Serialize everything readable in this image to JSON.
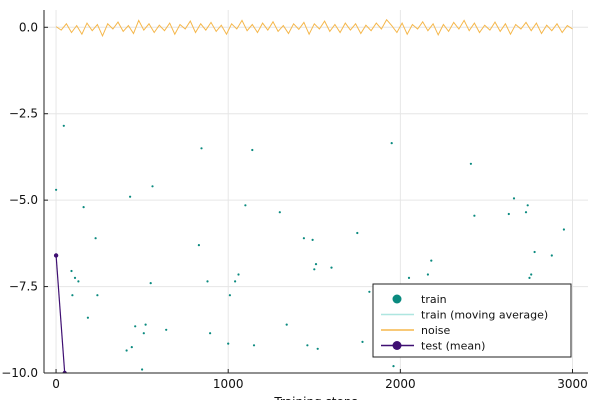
{
  "chart_data": {
    "type": "scatter",
    "xlabel": "Training steps",
    "ylabel": "",
    "title": "",
    "xlim": [
      -70,
      3090
    ],
    "ylim": [
      -10.0,
      0.5
    ],
    "x_ticks": [
      0,
      1000,
      2000,
      3000
    ],
    "x_tick_labels": [
      "0",
      "1000",
      "2000",
      "3000"
    ],
    "y_ticks": [
      0.0,
      -2.5,
      -5.0,
      -7.5,
      -10.0
    ],
    "y_tick_labels": [
      "0.0",
      "−2.5",
      "−5.0",
      "−7.5",
      "−10.0"
    ],
    "grid": true,
    "legend_position": "bottom-right",
    "series": [
      {
        "name": "train",
        "kind": "scatter",
        "color": "#0a8a7f",
        "points": [
          [
            0,
            -4.7
          ],
          [
            45,
            -2.85
          ],
          [
            90,
            -7.05
          ],
          [
            95,
            -7.75
          ],
          [
            110,
            -7.25
          ],
          [
            130,
            -7.35
          ],
          [
            160,
            -5.2
          ],
          [
            185,
            -8.4
          ],
          [
            230,
            -6.1
          ],
          [
            240,
            -7.75
          ],
          [
            410,
            -9.35
          ],
          [
            430,
            -4.9
          ],
          [
            440,
            -9.25
          ],
          [
            460,
            -8.65
          ],
          [
            500,
            -9.9
          ],
          [
            510,
            -8.85
          ],
          [
            520,
            -8.6
          ],
          [
            550,
            -7.4
          ],
          [
            560,
            -4.6
          ],
          [
            640,
            -8.75
          ],
          [
            830,
            -6.3
          ],
          [
            845,
            -3.5
          ],
          [
            880,
            -7.35
          ],
          [
            895,
            -8.85
          ],
          [
            1000,
            -9.15
          ],
          [
            1010,
            -7.75
          ],
          [
            1040,
            -7.35
          ],
          [
            1060,
            -7.15
          ],
          [
            1100,
            -5.15
          ],
          [
            1140,
            -3.55
          ],
          [
            1150,
            -9.2
          ],
          [
            1300,
            -5.35
          ],
          [
            1340,
            -8.6
          ],
          [
            1440,
            -6.1
          ],
          [
            1460,
            -9.2
          ],
          [
            1490,
            -6.15
          ],
          [
            1500,
            -7.0
          ],
          [
            1510,
            -6.85
          ],
          [
            1520,
            -9.3
          ],
          [
            1600,
            -6.95
          ],
          [
            1750,
            -5.95
          ],
          [
            1780,
            -9.1
          ],
          [
            1820,
            -7.65
          ],
          [
            1950,
            -3.35
          ],
          [
            1960,
            -9.8
          ],
          [
            2050,
            -7.25
          ],
          [
            2060,
            -8.0
          ],
          [
            2160,
            -7.15
          ],
          [
            2180,
            -6.75
          ],
          [
            2410,
            -3.95
          ],
          [
            2430,
            -5.45
          ],
          [
            2630,
            -5.4
          ],
          [
            2660,
            -4.95
          ],
          [
            2730,
            -5.35
          ],
          [
            2740,
            -5.15
          ],
          [
            2750,
            -7.25
          ],
          [
            2760,
            -7.15
          ],
          [
            2780,
            -6.5
          ],
          [
            2880,
            -6.6
          ],
          [
            2950,
            -5.85
          ]
        ]
      },
      {
        "name": "train (moving average)",
        "kind": "line",
        "color": "#aee6e0",
        "points": []
      },
      {
        "name": "noise",
        "kind": "line",
        "color": "#f5b74b",
        "points": [
          [
            0,
            0.02
          ],
          [
            30,
            -0.08
          ],
          [
            60,
            0.1
          ],
          [
            90,
            -0.15
          ],
          [
            120,
            0.05
          ],
          [
            150,
            -0.2
          ],
          [
            180,
            0.12
          ],
          [
            210,
            -0.1
          ],
          [
            240,
            0.08
          ],
          [
            270,
            -0.25
          ],
          [
            300,
            0.1
          ],
          [
            330,
            -0.05
          ],
          [
            360,
            0.15
          ],
          [
            390,
            -0.12
          ],
          [
            420,
            0.05
          ],
          [
            450,
            -0.18
          ],
          [
            480,
            0.2
          ],
          [
            510,
            -0.08
          ],
          [
            540,
            0.1
          ],
          [
            570,
            -0.15
          ],
          [
            600,
            0.06
          ],
          [
            630,
            -0.1
          ],
          [
            660,
            0.12
          ],
          [
            690,
            -0.2
          ],
          [
            720,
            0.08
          ],
          [
            750,
            -0.05
          ],
          [
            780,
            0.18
          ],
          [
            810,
            -0.15
          ],
          [
            840,
            0.1
          ],
          [
            870,
            -0.08
          ],
          [
            900,
            0.14
          ],
          [
            930,
            -0.12
          ],
          [
            960,
            0.06
          ],
          [
            990,
            -0.2
          ],
          [
            1020,
            0.1
          ],
          [
            1050,
            -0.05
          ],
          [
            1080,
            0.2
          ],
          [
            1110,
            -0.1
          ],
          [
            1140,
            0.08
          ],
          [
            1170,
            -0.15
          ],
          [
            1200,
            0.12
          ],
          [
            1230,
            -0.08
          ],
          [
            1260,
            0.16
          ],
          [
            1290,
            -0.12
          ],
          [
            1320,
            0.05
          ],
          [
            1350,
            -0.18
          ],
          [
            1380,
            0.1
          ],
          [
            1410,
            -0.06
          ],
          [
            1440,
            0.14
          ],
          [
            1470,
            -0.2
          ],
          [
            1500,
            0.1
          ],
          [
            1530,
            -0.05
          ],
          [
            1560,
            0.18
          ],
          [
            1590,
            -0.12
          ],
          [
            1620,
            0.08
          ],
          [
            1650,
            -0.15
          ],
          [
            1680,
            0.12
          ],
          [
            1710,
            -0.08
          ],
          [
            1740,
            0.1
          ],
          [
            1770,
            -0.18
          ],
          [
            1800,
            0.06
          ],
          [
            1830,
            -0.1
          ],
          [
            1860,
            0.12
          ],
          [
            1890,
            -0.05
          ],
          [
            1920,
            0.22
          ],
          [
            1950,
            0.05
          ],
          [
            1980,
            -0.15
          ],
          [
            2010,
            0.12
          ],
          [
            2040,
            -0.2
          ],
          [
            2070,
            0.08
          ],
          [
            2100,
            -0.05
          ],
          [
            2130,
            0.16
          ],
          [
            2160,
            -0.1
          ],
          [
            2190,
            0.1
          ],
          [
            2220,
            -0.22
          ],
          [
            2250,
            0.08
          ],
          [
            2280,
            -0.12
          ],
          [
            2310,
            0.14
          ],
          [
            2340,
            -0.05
          ],
          [
            2370,
            0.2
          ],
          [
            2400,
            -0.1
          ],
          [
            2430,
            0.12
          ],
          [
            2460,
            -0.15
          ],
          [
            2490,
            0.06
          ],
          [
            2520,
            -0.08
          ],
          [
            2550,
            0.15
          ],
          [
            2580,
            -0.12
          ],
          [
            2610,
            0.1
          ],
          [
            2640,
            -0.2
          ],
          [
            2670,
            0.08
          ],
          [
            2700,
            -0.05
          ],
          [
            2730,
            0.14
          ],
          [
            2760,
            -0.1
          ],
          [
            2790,
            0.12
          ],
          [
            2820,
            -0.18
          ],
          [
            2850,
            0.06
          ],
          [
            2880,
            -0.1
          ],
          [
            2910,
            0.1
          ],
          [
            2940,
            -0.15
          ],
          [
            2970,
            0.05
          ],
          [
            3000,
            -0.05
          ]
        ]
      },
      {
        "name": "test (mean)",
        "kind": "line-marker",
        "color": "#3f0f72",
        "points": [
          [
            0,
            -6.6
          ],
          [
            50,
            -10.0
          ]
        ]
      }
    ]
  }
}
